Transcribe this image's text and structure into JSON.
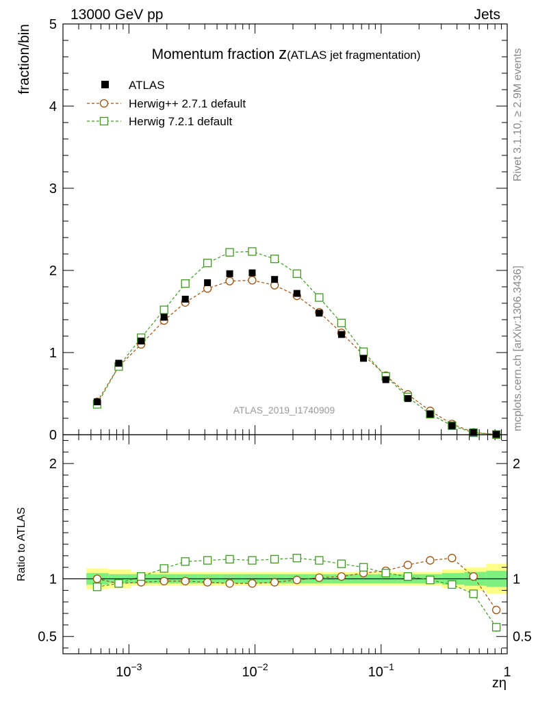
{
  "header": {
    "energy_label": "13000 GeV pp",
    "category_label": "Jets"
  },
  "side_labels": {
    "rivet": "Rivet 3.1.10, ≥ 2.9M events",
    "mcplots": "mcplots.cern.ch [arXiv:1306.3436]"
  },
  "colors": {
    "atlas": "#000000",
    "herwigpp": "#a0500a",
    "herwig7": "#3c9a1e",
    "band_inner": "#7ef07e",
    "band_outer": "#ffff88"
  },
  "chart_data": {
    "type": "scatter",
    "title_main": "Momentum fraction ",
    "title_symbol": "z",
    "title_sub": "(ATLAS jet fragmentation)",
    "ylabel": "fraction/bin",
    "ratio_ylabel": "Ratio to ATLAS",
    "xlabel": "zη",
    "watermark": "ATLAS_2019_I1740909",
    "xscale": "log",
    "xlim": [
      0.0003,
      1
    ],
    "ylim": [
      0,
      5
    ],
    "ratio_ylim": [
      0.35,
      2.25
    ],
    "y_ticks": [
      "0",
      "1",
      "2",
      "3",
      "4",
      "5"
    ],
    "ratio_ticks": [
      "0.5",
      "1",
      "2"
    ],
    "x_tick_labels": [
      {
        "base": "10",
        "exp": "−3"
      },
      {
        "base": "10",
        "exp": "−2"
      },
      {
        "base": "10",
        "exp": "−1"
      },
      {
        "base": "1",
        "exp": ""
      }
    ],
    "legend": [
      "ATLAS",
      "Herwig++ 2.7.1 default",
      "Herwig 7.2.1 default"
    ],
    "x": [
      0.00056,
      0.00083,
      0.00125,
      0.0019,
      0.0028,
      0.0042,
      0.0063,
      0.0095,
      0.0143,
      0.0215,
      0.0323,
      0.0485,
      0.0725,
      0.109,
      0.163,
      0.245,
      0.365,
      0.54,
      0.82
    ],
    "bin_edges": [
      0.00046,
      0.00069,
      0.00104,
      0.00156,
      0.00234,
      0.00351,
      0.00527,
      0.0079,
      0.0119,
      0.0178,
      0.0267,
      0.0401,
      0.0601,
      0.0901,
      0.135,
      0.203,
      0.304,
      0.456,
      0.684,
      1.0
    ],
    "series": [
      {
        "name": "ATLAS",
        "values": [
          0.4,
          0.87,
          1.14,
          1.43,
          1.65,
          1.85,
          1.96,
          1.97,
          1.89,
          1.72,
          1.48,
          1.22,
          0.93,
          0.67,
          0.44,
          0.25,
          0.11,
          0.027,
          0.004
        ]
      },
      {
        "name": "Herwig++ 2.7.1 default",
        "values": [
          0.4,
          0.83,
          1.1,
          1.39,
          1.61,
          1.78,
          1.87,
          1.88,
          1.82,
          1.69,
          1.49,
          1.24,
          0.97,
          0.72,
          0.49,
          0.29,
          0.13,
          0.028,
          0.003
        ]
      },
      {
        "name": "Herwig 7.2.1 default",
        "values": [
          0.37,
          0.83,
          1.18,
          1.52,
          1.84,
          2.09,
          2.22,
          2.23,
          2.14,
          1.96,
          1.67,
          1.36,
          1.01,
          0.71,
          0.46,
          0.25,
          0.11,
          0.024,
          0.002
        ]
      }
    ],
    "ratio_series": [
      {
        "name": "Herwig++ 2.7.1 default",
        "values": [
          1.0,
          0.96,
          0.97,
          0.98,
          0.98,
          0.97,
          0.96,
          0.96,
          0.97,
          0.99,
          1.01,
          1.02,
          1.05,
          1.07,
          1.12,
          1.16,
          1.18,
          1.02,
          0.73
        ]
      },
      {
        "name": "Herwig 7.2.1 default",
        "values": [
          0.93,
          0.96,
          1.02,
          1.09,
          1.15,
          1.16,
          1.17,
          1.16,
          1.17,
          1.18,
          1.16,
          1.13,
          1.1,
          1.05,
          1.02,
          0.99,
          0.95,
          0.87,
          0.58
        ]
      }
    ],
    "ratio_band_inner": [
      0.05,
      0.04,
      0.04,
      0.04,
      0.04,
      0.04,
      0.04,
      0.04,
      0.04,
      0.04,
      0.04,
      0.04,
      0.04,
      0.04,
      0.04,
      0.04,
      0.05,
      0.06,
      0.07
    ],
    "ratio_band_outer": [
      0.09,
      0.08,
      0.06,
      0.06,
      0.06,
      0.06,
      0.06,
      0.06,
      0.06,
      0.06,
      0.06,
      0.06,
      0.06,
      0.06,
      0.06,
      0.06,
      0.08,
      0.1,
      0.13
    ]
  }
}
